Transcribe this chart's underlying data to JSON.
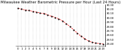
{
  "title": "Milwaukee Weather Barometric Pressure per Hour (Last 24 Hours)",
  "hours": [
    0,
    1,
    2,
    3,
    4,
    5,
    6,
    7,
    8,
    9,
    10,
    11,
    12,
    13,
    14,
    15,
    16,
    17,
    18,
    19,
    20,
    21,
    22,
    23
  ],
  "pressure": [
    30.22,
    30.2,
    30.18,
    30.17,
    30.15,
    30.13,
    30.11,
    30.1,
    30.07,
    30.04,
    30.01,
    29.98,
    29.93,
    29.87,
    29.8,
    29.73,
    29.65,
    29.58,
    29.52,
    29.47,
    29.44,
    29.42,
    29.41,
    29.4
  ],
  "line_color": "#ff0000",
  "marker_color": "#000000",
  "bg_color": "#ffffff",
  "grid_color": "#888888",
  "ymin": 29.35,
  "ymax": 30.3,
  "yticks": [
    29.4,
    29.5,
    29.6,
    29.7,
    29.8,
    29.9,
    30.0,
    30.1,
    30.2,
    30.3
  ],
  "title_fontsize": 3.8,
  "tick_fontsize": 2.8,
  "title_color": "#000000"
}
